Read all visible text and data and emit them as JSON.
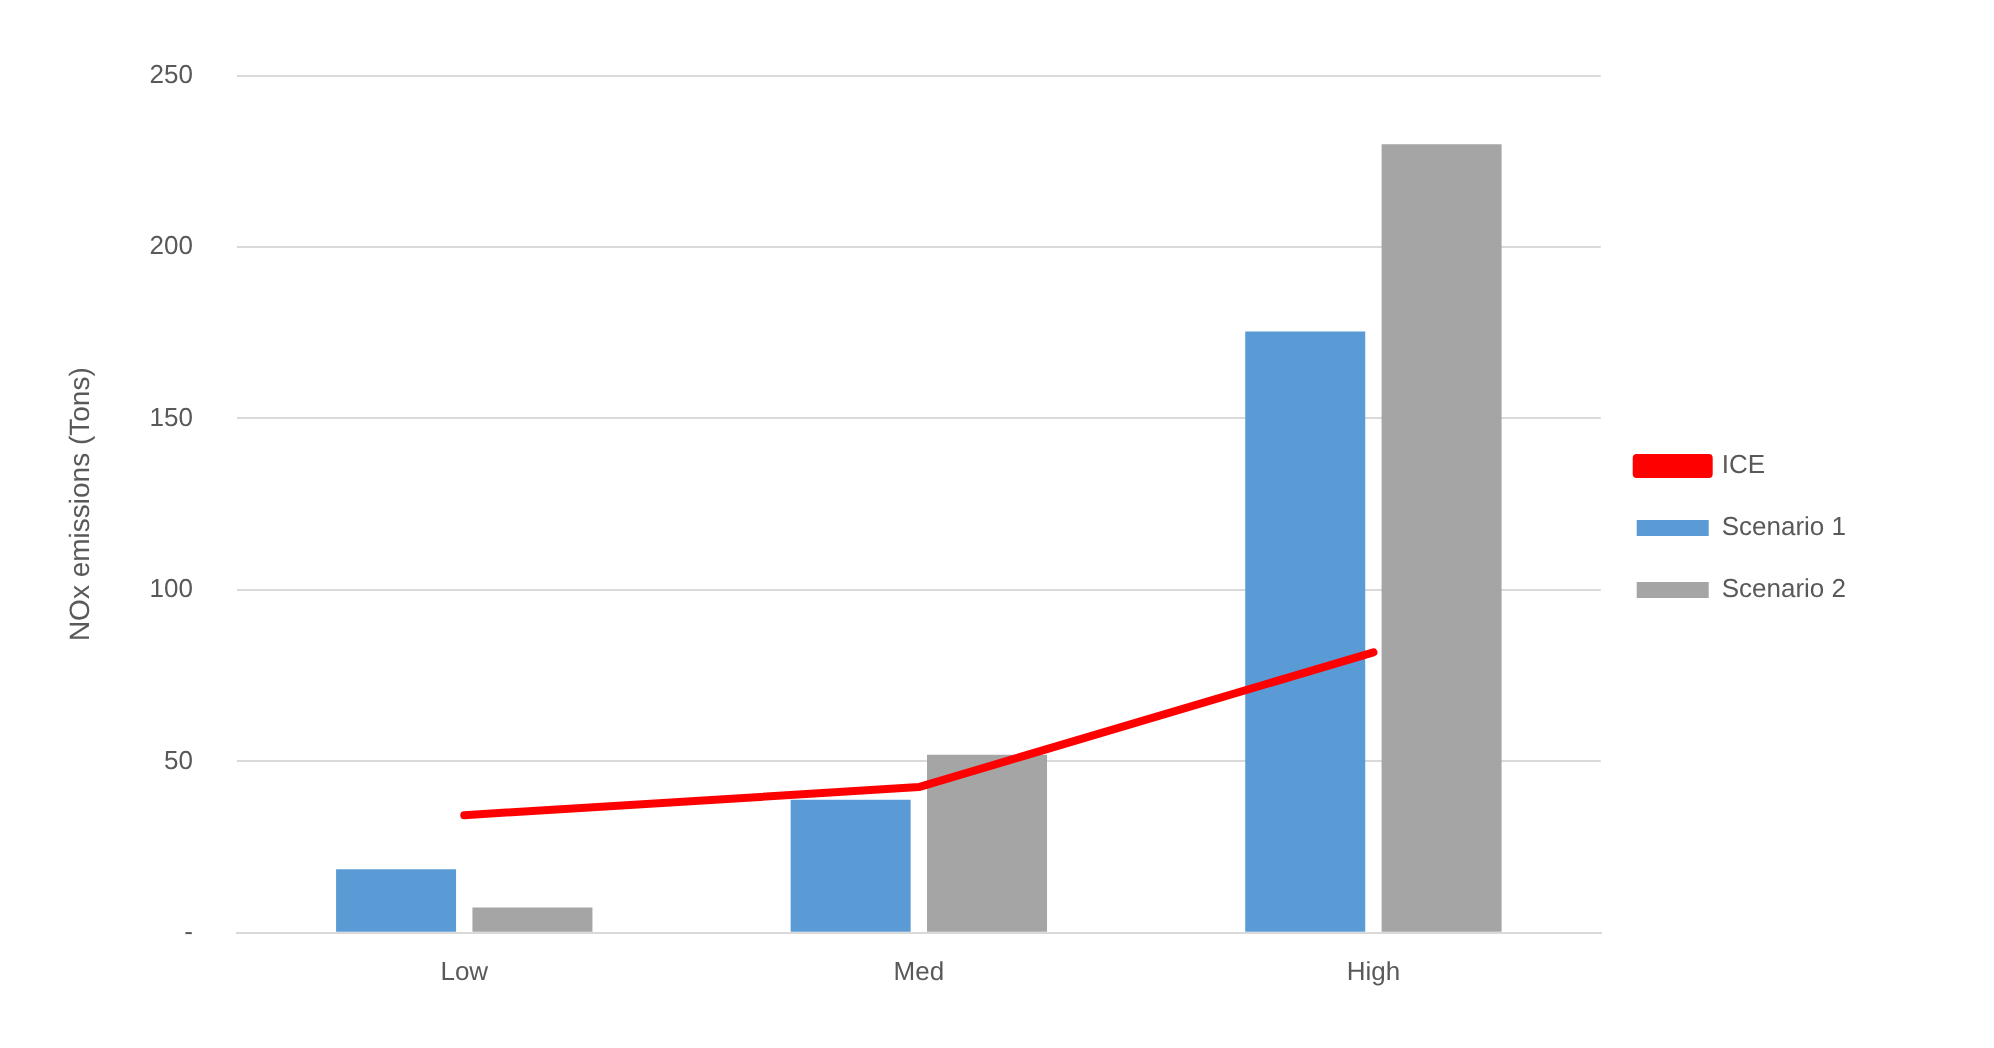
{
  "chart_data": {
    "type": "bar",
    "ylabel": "NOx emissions (Tons)",
    "categories": [
      "Low",
      "Med",
      "High"
    ],
    "series": [
      {
        "name": "Scenario 1",
        "color": "#5b9bd5",
        "values": [
          18.5,
          38.8,
          175.4
        ]
      },
      {
        "name": "Scenario 2",
        "color": "#a5a5a5",
        "values": [
          7.4,
          51.9,
          230
        ]
      },
      {
        "name": "ICE",
        "type": "line",
        "color": "#ff0000",
        "values": [
          34.3,
          42.5,
          81.8
        ]
      }
    ],
    "ylim": [
      0,
      250
    ],
    "yticks": [
      {
        "value": 0,
        "label": "-"
      },
      50,
      100,
      150,
      200,
      250
    ],
    "grid": "y",
    "legend": "right",
    "marker": "none"
  }
}
